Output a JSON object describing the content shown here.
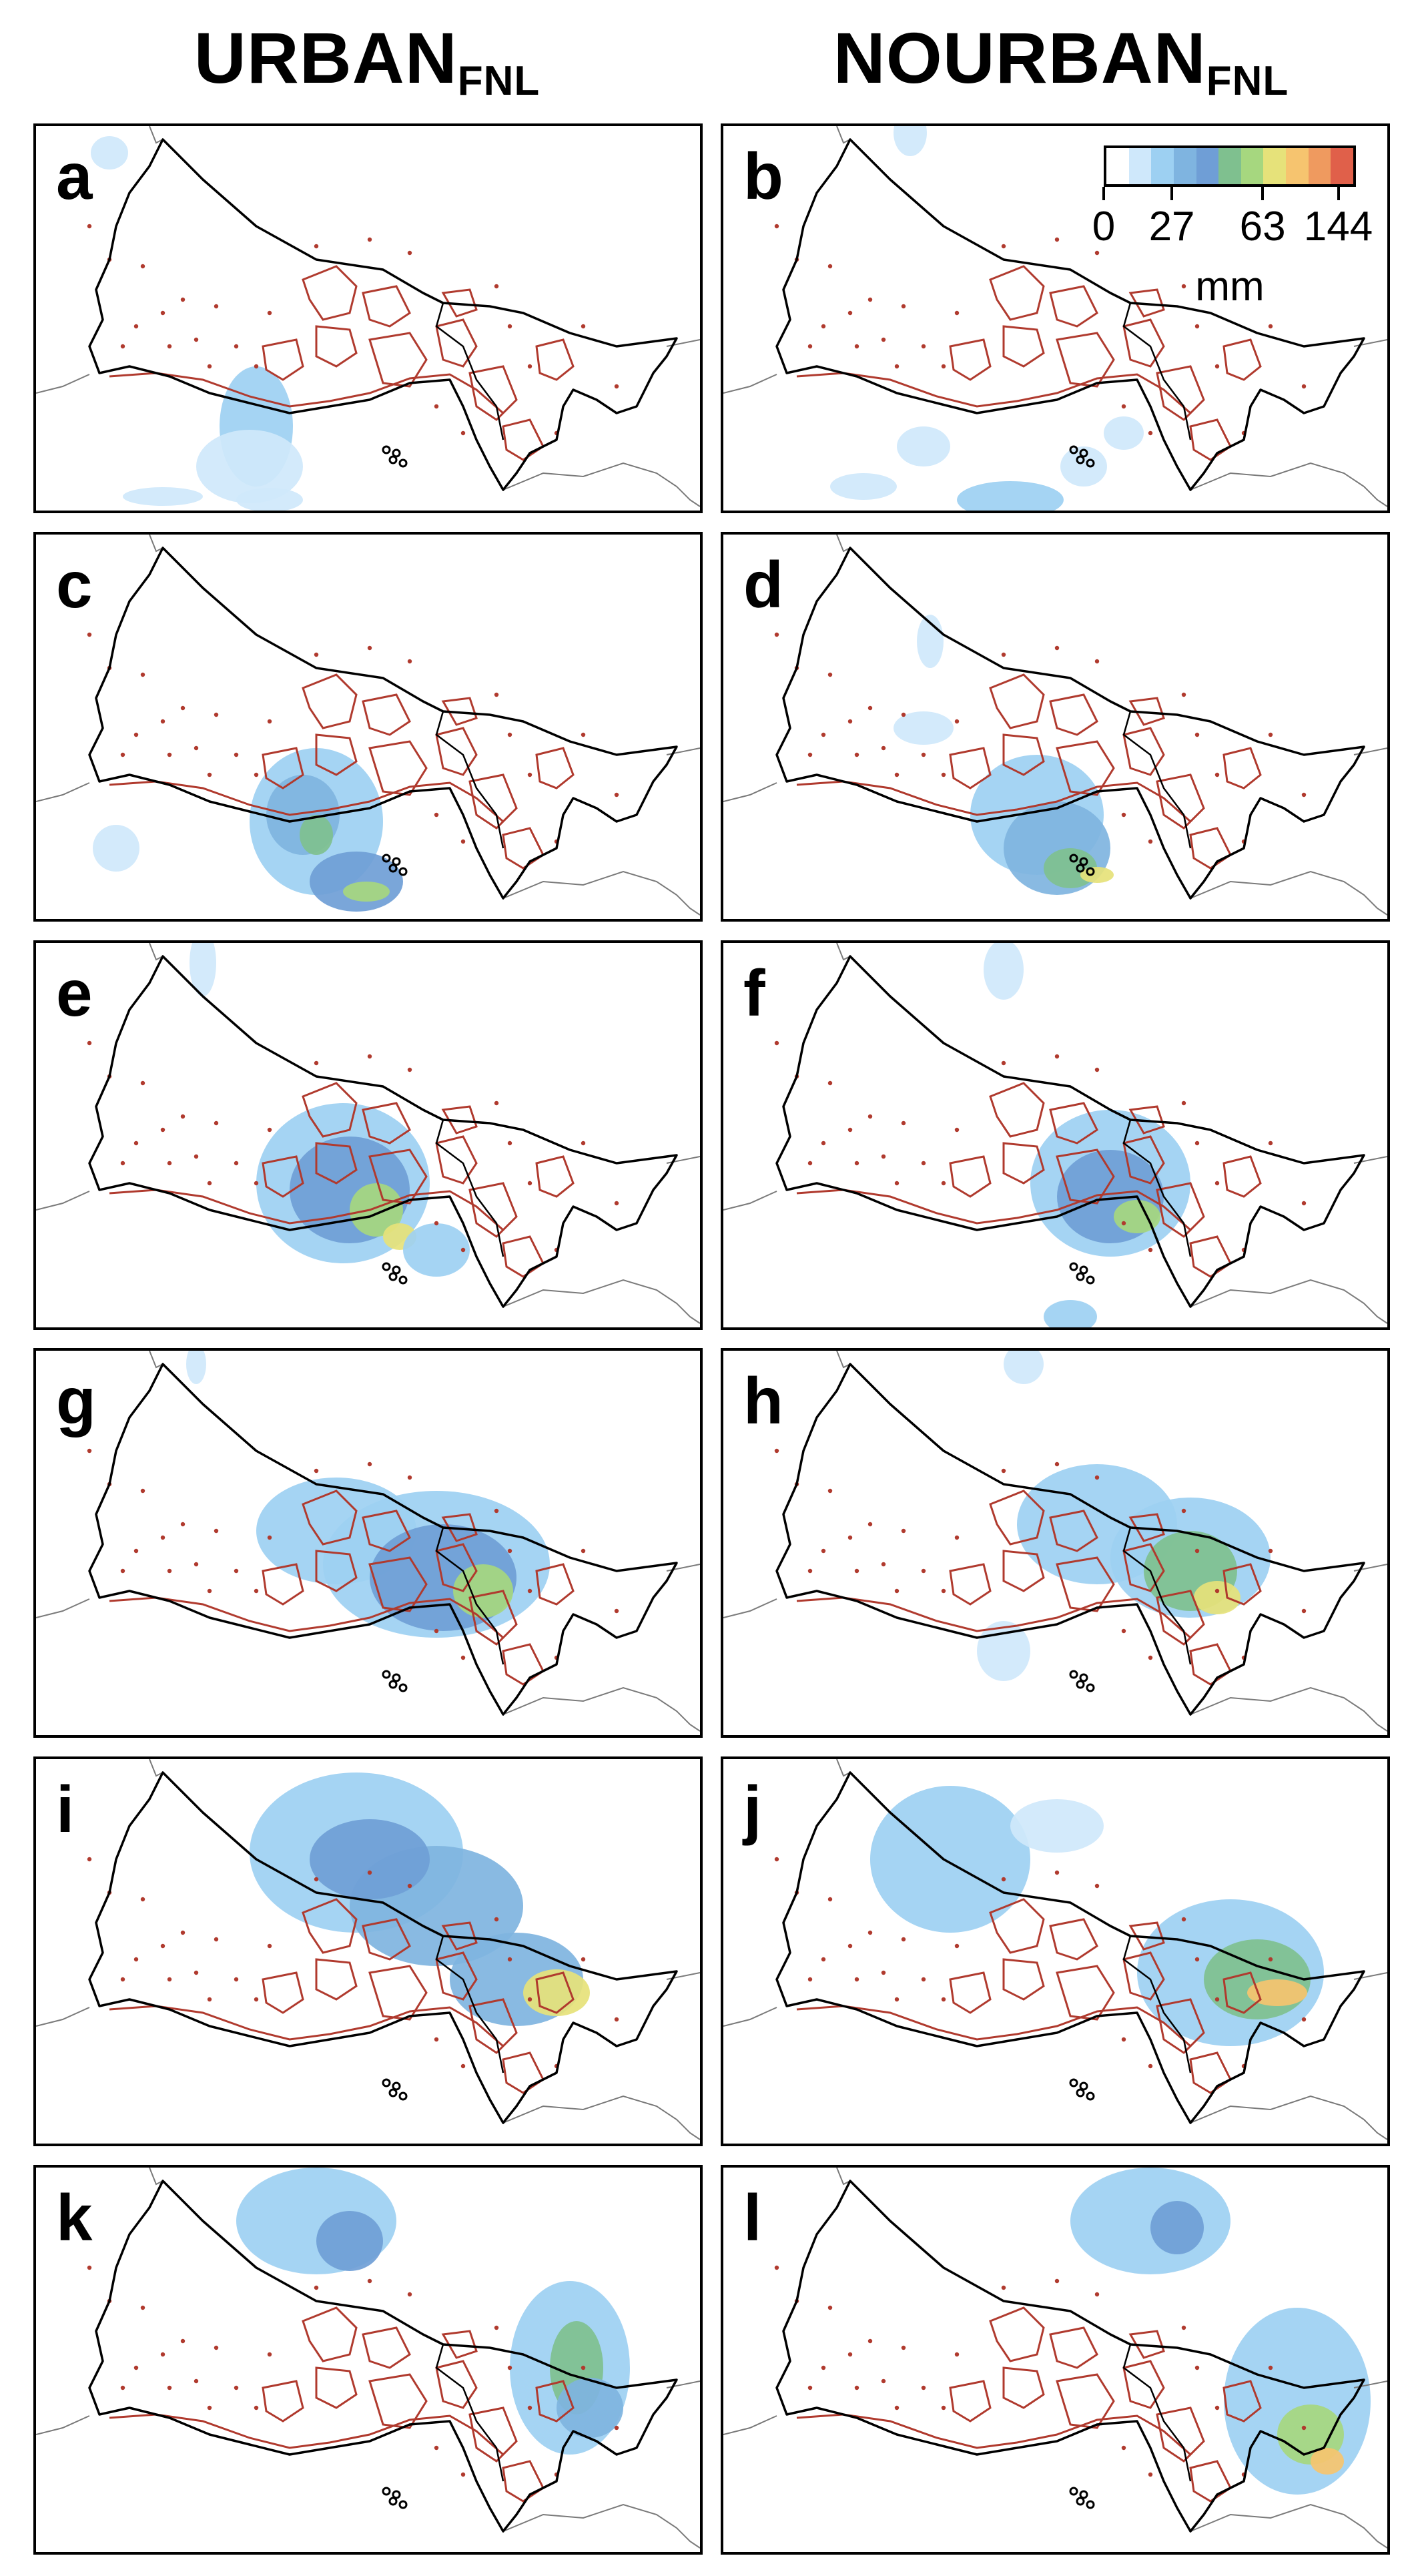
{
  "columns": [
    {
      "name": "URBAN",
      "subscript": "FNL"
    },
    {
      "name": "NOURBAN",
      "subscript": "FNL"
    }
  ],
  "panels": [
    {
      "label": "a",
      "experiment": "URBAN"
    },
    {
      "label": "b",
      "experiment": "NOURBAN"
    },
    {
      "label": "c",
      "experiment": "URBAN"
    },
    {
      "label": "d",
      "experiment": "NOURBAN"
    },
    {
      "label": "e",
      "experiment": "URBAN"
    },
    {
      "label": "f",
      "experiment": "NOURBAN"
    },
    {
      "label": "g",
      "experiment": "URBAN"
    },
    {
      "label": "h",
      "experiment": "NOURBAN"
    },
    {
      "label": "i",
      "experiment": "URBAN"
    },
    {
      "label": "j",
      "experiment": "NOURBAN"
    },
    {
      "label": "k",
      "experiment": "URBAN"
    },
    {
      "label": "l",
      "experiment": "NOURBAN"
    }
  ],
  "colorbar": {
    "unit": "mm",
    "tick_labels": [
      "0",
      "27",
      "63",
      "144"
    ],
    "colors": [
      "#ffffff",
      "#cfe8fb",
      "#9dd0f2",
      "#7fb4e0",
      "#6f9ed6",
      "#7fc08f",
      "#a6d77f",
      "#e6e27a",
      "#f6c46f",
      "#ef9a5f",
      "#e0604a"
    ]
  },
  "map_colors": {
    "urban_outline": "#b03a2e",
    "boundary": "#000000",
    "coast": "#7a7a7a"
  }
}
